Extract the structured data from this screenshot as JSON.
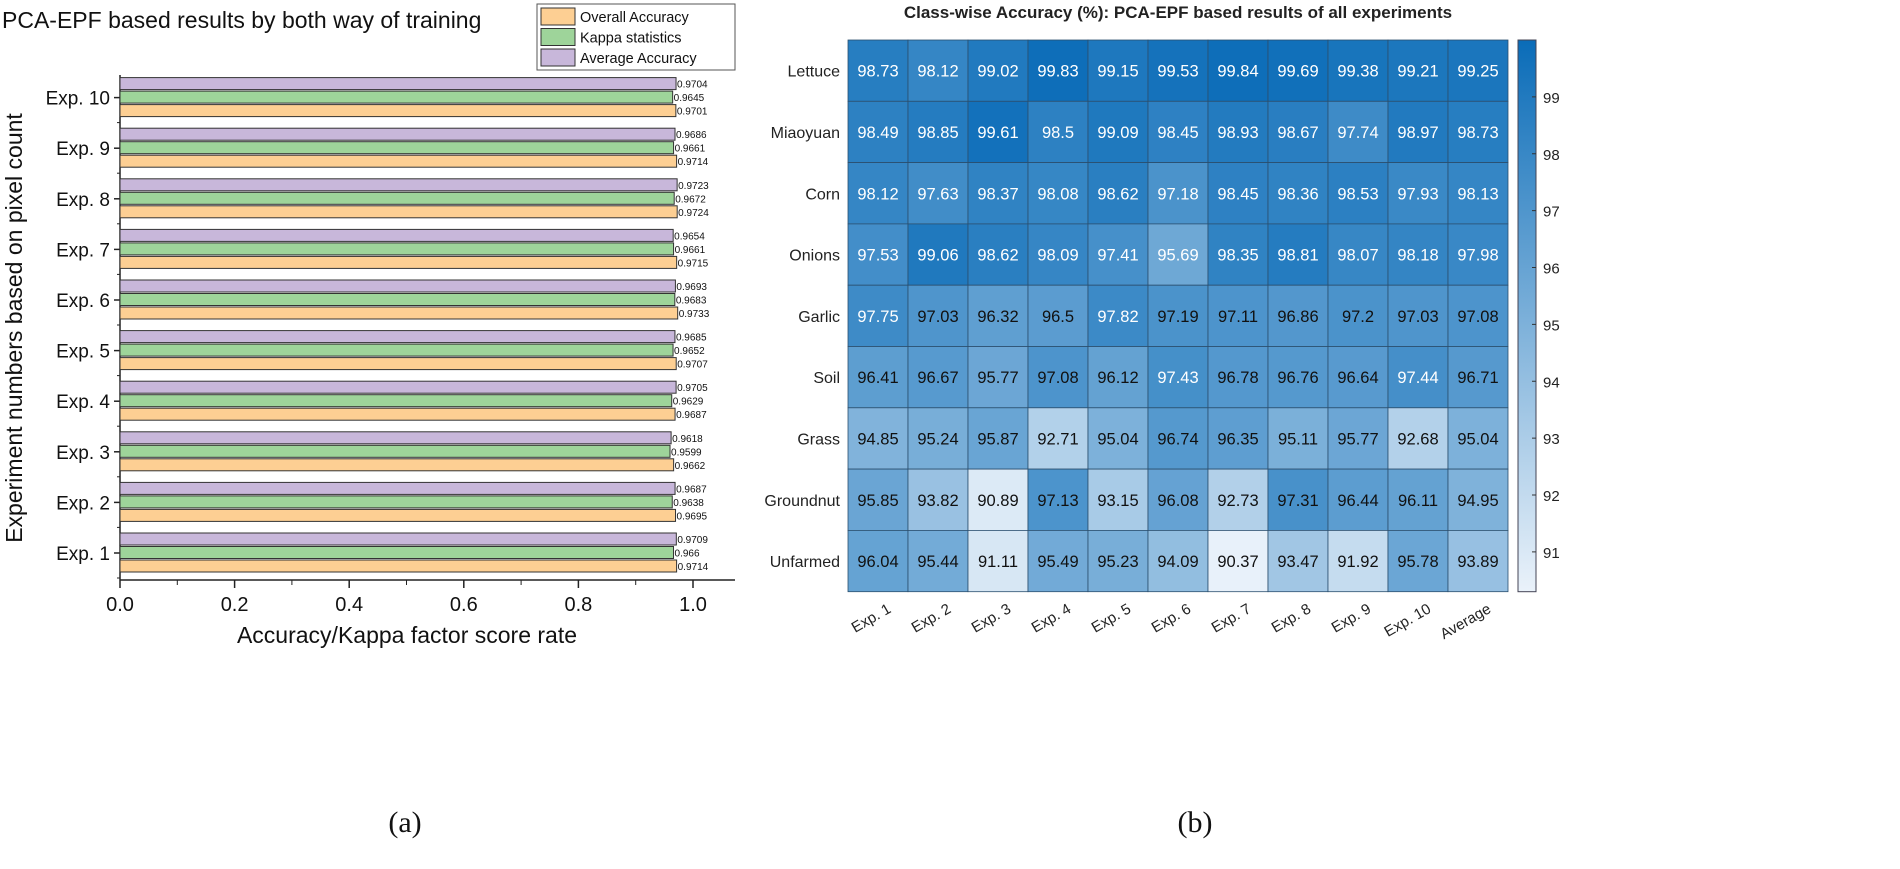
{
  "chart_data": [
    {
      "type": "bar",
      "orientation": "horizontal",
      "title": "PCA-EPF based results by both way of training",
      "xlabel": "Accuracy/Kappa factor score rate",
      "ylabel": "Experiment numbers based on pixel count",
      "xlim": [
        0,
        1.07
      ],
      "xticks": [
        "0.0",
        "0.2",
        "0.4",
        "0.6",
        "0.8",
        "1.0"
      ],
      "legend_position": "top-right",
      "categories": [
        "Exp. 1",
        "Exp. 2",
        "Exp. 3",
        "Exp. 4",
        "Exp. 5",
        "Exp. 6",
        "Exp. 7",
        "Exp. 8",
        "Exp. 9",
        "Exp. 10"
      ],
      "series": [
        {
          "name": "Overall Accuracy",
          "color": "#fdcf93",
          "values": [
            0.9714,
            0.9695,
            0.9662,
            0.9687,
            0.9707,
            0.9733,
            0.9715,
            0.9724,
            0.9714,
            0.9701
          ],
          "labels": [
            "0.9714",
            "0.9695",
            "0.9662",
            "0.9687",
            "0.9707",
            "0.9733",
            "0.9715",
            "0.9724",
            "0.9714",
            "0.9701"
          ]
        },
        {
          "name": "Kappa statistics",
          "color": "#9ed49a",
          "values": [
            0.966,
            0.9638,
            0.9599,
            0.9629,
            0.9652,
            0.9683,
            0.9661,
            0.9672,
            0.9661,
            0.9645
          ],
          "labels": [
            "0.966",
            "0.9638",
            "0.9599",
            "0.9629",
            "0.9652",
            "0.9683",
            "0.9661",
            "0.9672",
            "0.9661",
            "0.9645"
          ]
        },
        {
          "name": "Average Accuracy",
          "color": "#c8b7da",
          "values": [
            0.9709,
            0.9687,
            0.9618,
            0.9705,
            0.9685,
            0.9693,
            0.9654,
            0.9723,
            0.9686,
            0.9704
          ],
          "labels": [
            "0.9709",
            "0.9687",
            "0.9618",
            "0.9705",
            "0.9685",
            "0.9693",
            "0.9654",
            "0.9723",
            "0.9686",
            "0.9704"
          ]
        }
      ],
      "caption": "(a)"
    },
    {
      "type": "heatmap",
      "title": "Class-wise Accuracy (%): PCA-EPF based results of all experiments",
      "columns": [
        "Exp. 1",
        "Exp. 2",
        "Exp. 3",
        "Exp. 4",
        "Exp. 5",
        "Exp. 6",
        "Exp. 7",
        "Exp. 8",
        "Exp. 9",
        "Exp. 10",
        "Average"
      ],
      "rows": [
        "Lettuce",
        "Miaoyuan",
        "Corn",
        "Onions",
        "Garlic",
        "Soil",
        "Grass",
        "Groundnut",
        "Unfarmed"
      ],
      "values": [
        [
          "98.73",
          "98.12",
          "99.02",
          "99.83",
          "99.15",
          "99.53",
          "99.84",
          "99.69",
          "99.38",
          "99.21",
          "99.25"
        ],
        [
          "98.49",
          "98.85",
          "99.61",
          "98.5",
          "99.09",
          "98.45",
          "98.93",
          "98.67",
          "97.74",
          "98.97",
          "98.73"
        ],
        [
          "98.12",
          "97.63",
          "98.37",
          "98.08",
          "98.62",
          "97.18",
          "98.45",
          "98.36",
          "98.53",
          "97.93",
          "98.13"
        ],
        [
          "97.53",
          "99.06",
          "98.62",
          "98.09",
          "97.41",
          "95.69",
          "98.35",
          "98.81",
          "98.07",
          "98.18",
          "97.98"
        ],
        [
          "97.75",
          "97.03",
          "96.32",
          "96.5",
          "97.82",
          "97.19",
          "97.11",
          "96.86",
          "97.2",
          "97.03",
          "97.08"
        ],
        [
          "96.41",
          "96.67",
          "95.77",
          "97.08",
          "96.12",
          "97.43",
          "96.78",
          "96.76",
          "96.64",
          "97.44",
          "96.71"
        ],
        [
          "94.85",
          "95.24",
          "95.87",
          "92.71",
          "95.04",
          "96.74",
          "96.35",
          "95.11",
          "95.77",
          "92.68",
          "95.04"
        ],
        [
          "95.85",
          "93.82",
          "90.89",
          "97.13",
          "93.15",
          "96.08",
          "92.73",
          "97.31",
          "96.44",
          "96.11",
          "94.95"
        ],
        [
          "96.04",
          "95.44",
          "91.11",
          "95.49",
          "95.23",
          "94.09",
          "90.37",
          "93.47",
          "91.92",
          "95.78",
          "93.89"
        ]
      ],
      "colorbar": {
        "ticks": [
          "91",
          "92",
          "93",
          "94",
          "95",
          "96",
          "97",
          "98",
          "99"
        ],
        "range": [
          90.3,
          100
        ],
        "low_color": "#eaf2fa",
        "high_color": "#0a6cb8"
      },
      "caption": "(b)"
    }
  ]
}
